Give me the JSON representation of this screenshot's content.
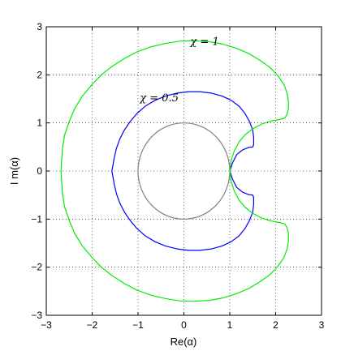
{
  "chart_data": {
    "type": "line",
    "title": "",
    "xlabel": "Re(α)",
    "ylabel": "I m(α)",
    "xlim": [
      -3,
      3
    ],
    "ylim": [
      -3,
      3
    ],
    "xticks": [
      -3,
      -2,
      -1,
      0,
      1,
      2,
      3
    ],
    "yticks": [
      -3,
      -2,
      -1,
      0,
      1,
      2,
      3
    ],
    "xtick_labels": [
      "−3",
      "−2",
      "−1",
      "0",
      "1",
      "2",
      "3"
    ],
    "ytick_labels": [
      "−3",
      "−2",
      "−1",
      "0",
      "1",
      "2",
      "3"
    ],
    "grid": true,
    "annotations": [
      {
        "text": "χ = 1",
        "x": 0.14,
        "y": 2.62
      },
      {
        "text": "χ = 0.5",
        "x": -0.96,
        "y": 1.45
      }
    ],
    "series": [
      {
        "color": "#808080",
        "shape": "circle",
        "x": [
          1.0,
          0.966,
          0.866,
          0.707,
          0.5,
          0.259,
          0.0,
          -0.259,
          -0.5,
          -0.707,
          -0.866,
          -0.966,
          -1.0,
          -0.966,
          -0.866,
          -0.707,
          -0.5,
          -0.259,
          0.0,
          0.259,
          0.5,
          0.707,
          0.866,
          0.966,
          1.0
        ],
        "y": [
          0.0,
          0.259,
          0.5,
          0.707,
          0.866,
          0.966,
          1.0,
          0.966,
          0.866,
          0.707,
          0.5,
          0.259,
          0.0,
          -0.259,
          -0.5,
          -0.707,
          -0.866,
          -0.966,
          -1.0,
          -0.966,
          -0.866,
          -0.707,
          -0.5,
          -0.259,
          0.0
        ]
      },
      {
        "color": "#0000ff",
        "x": [
          1.0,
          1.06,
          1.15,
          1.28,
          1.41,
          1.5,
          1.52,
          1.52,
          1.5,
          1.43,
          1.33,
          1.2,
          1.03,
          0.83,
          0.6,
          0.35,
          0.1,
          -0.15,
          -0.4,
          -0.63,
          -0.84,
          -1.02,
          -1.17,
          -1.3,
          -1.4,
          -1.47,
          -1.52,
          -1.55,
          -1.57,
          -1.55,
          -1.52,
          -1.47,
          -1.4,
          -1.3,
          -1.17,
          -1.02,
          -0.84,
          -0.63,
          -0.4,
          -0.15,
          0.1,
          0.35,
          0.6,
          0.83,
          1.03,
          1.2,
          1.33,
          1.43,
          1.5,
          1.52,
          1.52,
          1.5,
          1.41,
          1.28,
          1.15,
          1.06,
          1.0
        ],
        "y": [
          0.0,
          0.17,
          0.34,
          0.44,
          0.49,
          0.5,
          0.55,
          0.7,
          0.85,
          1.03,
          1.2,
          1.35,
          1.47,
          1.56,
          1.62,
          1.65,
          1.65,
          1.62,
          1.56,
          1.47,
          1.35,
          1.2,
          1.03,
          0.85,
          0.66,
          0.47,
          0.27,
          0.1,
          0.0,
          -0.1,
          -0.27,
          -0.47,
          -0.66,
          -0.85,
          -1.03,
          -1.2,
          -1.35,
          -1.47,
          -1.56,
          -1.62,
          -1.65,
          -1.65,
          -1.62,
          -1.56,
          -1.47,
          -1.35,
          -1.2,
          -1.03,
          -0.85,
          -0.7,
          -0.55,
          -0.5,
          -0.49,
          -0.44,
          -0.34,
          -0.17,
          0.0
        ]
      },
      {
        "color": "#00ee00",
        "x": [
          1.0,
          1.03,
          1.1,
          1.2,
          1.33,
          1.5,
          1.7,
          1.9,
          2.08,
          2.2,
          2.25,
          2.28,
          2.28,
          2.25,
          2.18,
          2.05,
          1.88,
          1.66,
          1.42,
          1.15,
          0.85,
          0.55,
          0.22,
          -0.1,
          -0.42,
          -0.73,
          -1.02,
          -1.3,
          -1.56,
          -1.8,
          -2.02,
          -2.22,
          -2.38,
          -2.5,
          -2.6,
          -2.65,
          -2.68,
          -2.65,
          -2.6,
          -2.5,
          -2.38,
          -2.22,
          -2.02,
          -1.8,
          -1.56,
          -1.3,
          -1.02,
          -0.73,
          -0.42,
          -0.1,
          0.22,
          0.55,
          0.85,
          1.15,
          1.42,
          1.66,
          1.88,
          2.05,
          2.18,
          2.25,
          2.28,
          2.28,
          2.25,
          2.2,
          2.08,
          1.9,
          1.7,
          1.5,
          1.33,
          1.2,
          1.1,
          1.03,
          1.0
        ],
        "y": [
          0.0,
          0.22,
          0.42,
          0.6,
          0.75,
          0.88,
          0.98,
          1.04,
          1.07,
          1.1,
          1.18,
          1.3,
          1.45,
          1.62,
          1.8,
          1.98,
          2.15,
          2.3,
          2.44,
          2.55,
          2.64,
          2.69,
          2.71,
          2.7,
          2.65,
          2.58,
          2.48,
          2.34,
          2.18,
          2.0,
          1.78,
          1.55,
          1.3,
          1.03,
          0.75,
          0.45,
          0.0,
          -0.45,
          -0.75,
          -1.03,
          -1.3,
          -1.55,
          -1.78,
          -2.0,
          -2.18,
          -2.34,
          -2.48,
          -2.58,
          -2.65,
          -2.7,
          -2.71,
          -2.69,
          -2.64,
          -2.55,
          -2.44,
          -2.3,
          -2.15,
          -1.98,
          -1.8,
          -1.62,
          -1.45,
          -1.3,
          -1.18,
          -1.1,
          -1.07,
          -1.04,
          -0.98,
          -0.88,
          -0.75,
          -0.6,
          -0.42,
          -0.22,
          0.0
        ]
      }
    ]
  }
}
